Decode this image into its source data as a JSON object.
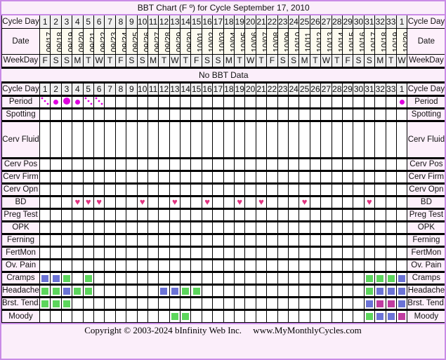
{
  "title": "BBT Chart (F º) for Cycle September 17, 2010",
  "no_data": "No BBT Data",
  "labels": {
    "cycle_day": "Cycle Day",
    "date": "Date",
    "weekday": "WeekDay"
  },
  "cycle_days": [
    "1",
    "2",
    "3",
    "4",
    "5",
    "6",
    "7",
    "8",
    "9",
    "10",
    "11",
    "12",
    "13",
    "14",
    "15",
    "16",
    "17",
    "18",
    "19",
    "20",
    "21",
    "22",
    "23",
    "24",
    "25",
    "26",
    "27",
    "28",
    "29",
    "30",
    "31",
    "32",
    "33",
    "1"
  ],
  "dates": [
    "09/17",
    "09/18",
    "09/19",
    "09/20",
    "09/21",
    "09/22",
    "09/23",
    "09/24",
    "09/25",
    "09/26",
    "09/27",
    "09/28",
    "09/29",
    "09/30",
    "10/01",
    "10/02",
    "10/03",
    "10/04",
    "10/05",
    "10/06",
    "10/07",
    "10/08",
    "10/09",
    "10/10",
    "10/11",
    "10/12",
    "10/13",
    "10/14",
    "10/15",
    "10/16",
    "10/17",
    "10/18",
    "10/19",
    "10/20"
  ],
  "weekdays": [
    "F",
    "S",
    "S",
    "M",
    "T",
    "W",
    "T",
    "F",
    "S",
    "S",
    "M",
    "T",
    "W",
    "T",
    "F",
    "S",
    "S",
    "M",
    "T",
    "W",
    "T",
    "F",
    "S",
    "S",
    "M",
    "T",
    "W",
    "T",
    "F",
    "S",
    "S",
    "M",
    "T",
    "W"
  ],
  "colors": {
    "g": "#5cd65c",
    "b": "#6b73d6",
    "m": "#c03ca0",
    "heart": "#e03480",
    "period": "#e000e0"
  },
  "rows": [
    {
      "label": "Period",
      "marks": {
        "0": "spot",
        "1": "small",
        "2": "big",
        "3": "small",
        "4": "spot",
        "5": "spot",
        "33": "small"
      }
    },
    {
      "label": "Spotting",
      "marks": {}
    },
    {
      "label": "Cerv Fluid",
      "tall": true,
      "marks": {}
    },
    {
      "label": "Cerv Pos",
      "marks": {}
    },
    {
      "label": "Cerv Firm",
      "marks": {}
    },
    {
      "label": "Cerv Opn",
      "marks": {}
    },
    {
      "label": "BD",
      "marks": {
        "3": "heart",
        "4": "heart",
        "5": "heart",
        "9": "heart",
        "12": "heart",
        "15": "heart",
        "18": "heart",
        "20": "heart",
        "24": "heart",
        "30": "heart"
      }
    },
    {
      "label": "Preg Test",
      "marks": {}
    },
    {
      "label": "OPK",
      "marks": {}
    },
    {
      "label": "Ferning",
      "marks": {}
    },
    {
      "label": "FertMon",
      "marks": {}
    },
    {
      "label": "Ov. Pain",
      "marks": {}
    },
    {
      "label": "Cramps",
      "marks": {
        "0": "b",
        "1": "b",
        "2": "g",
        "4": "g",
        "30": "g",
        "31": "g",
        "32": "g",
        "33": "b"
      }
    },
    {
      "label": "Headache",
      "marks": {
        "0": "g",
        "1": "g",
        "2": "b",
        "3": "g",
        "4": "g",
        "11": "b",
        "12": "b",
        "13": "g",
        "14": "g",
        "30": "g",
        "31": "b",
        "32": "b",
        "33": "b"
      }
    },
    {
      "label": "Brst. Tend.",
      "marks": {
        "0": "g",
        "1": "g",
        "2": "g",
        "30": "b",
        "31": "m",
        "32": "m",
        "33": "b"
      }
    },
    {
      "label": "Moody",
      "marks": {
        "12": "g",
        "13": "g",
        "30": "g",
        "31": "b",
        "32": "b",
        "33": "m"
      }
    }
  ],
  "footer": "Copyright © 2003-2024 bInfinity Web Inc.     www.MyMonthlyCycles.com"
}
